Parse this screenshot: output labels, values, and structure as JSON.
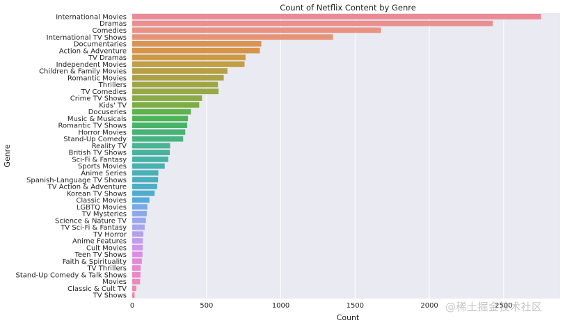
{
  "chart_data": {
    "type": "bar",
    "orientation": "horizontal",
    "title": "Count of Netflix Content by Genre",
    "xlabel": "Count",
    "ylabel": "Genre",
    "xlim": [
      0,
      2880
    ],
    "xticks": [
      0,
      500,
      1000,
      1500,
      2000,
      2500
    ],
    "grid": true,
    "categories": [
      "International Movies",
      "Dramas",
      "Comedies",
      "International TV Shows",
      "Documentaries",
      "Action & Adventure",
      "TV Dramas",
      "Independent Movies",
      "Children & Family Movies",
      "Romantic Movies",
      "Thrillers",
      "TV Comedies",
      "Crime TV Shows",
      "Kids' TV",
      "Docuseries",
      "Music & Musicals",
      "Romantic TV Shows",
      "Horror Movies",
      "Stand-Up Comedy",
      "Reality TV",
      "British TV Shows",
      "Sci-Fi & Fantasy",
      "Sports Movies",
      "Anime Series",
      "Spanish-Language TV Shows",
      "TV Action & Adventure",
      "Korean TV Shows",
      "Classic Movies",
      "LGBTQ Movies",
      "TV Mysteries",
      "Science & Nature TV",
      "TV Sci-Fi & Fantasy",
      "TV Horror",
      "Anime Features",
      "Cult Movies",
      "Teen TV Shows",
      "Faith & Spirituality",
      "TV Thrillers",
      "Stand-Up Comedy & Talk Shows",
      "Movies",
      "Classic & Cult TV",
      "TV Shows"
    ],
    "values": [
      2752,
      2427,
      1674,
      1351,
      869,
      859,
      763,
      756,
      641,
      616,
      577,
      581,
      470,
      451,
      395,
      375,
      370,
      357,
      343,
      255,
      253,
      243,
      219,
      176,
      174,
      168,
      151,
      116,
      102,
      98,
      92,
      84,
      75,
      71,
      71,
      69,
      65,
      57,
      56,
      53,
      28,
      16
    ],
    "colors": [
      "#ec8a95",
      "#ea8f8f",
      "#e89282",
      "#e59477",
      "#da9350",
      "#d69448",
      "#cc9a45",
      "#c29e45",
      "#b6a043",
      "#aca243",
      "#a0a543",
      "#97a846",
      "#8aab45",
      "#7dae45",
      "#60b24a",
      "#4db455",
      "#48b466",
      "#46b374",
      "#46b380",
      "#48b491",
      "#48b39c",
      "#48b2a6",
      "#48b1ae",
      "#48b0b6",
      "#49afbd",
      "#4aaec5",
      "#4eadcd",
      "#53abda",
      "#7aa9e8",
      "#8aa8ec",
      "#99a7ee",
      "#a7a4ee",
      "#b5a0ee",
      "#c39cee",
      "#cf96ec",
      "#d98fe6",
      "#e28ad9",
      "#e78ad0",
      "#ea8ac6",
      "#ec8bbb",
      "#ec8aaf",
      "#ec8aa3"
    ]
  },
  "watermark": "@稀土掘金技术社区"
}
